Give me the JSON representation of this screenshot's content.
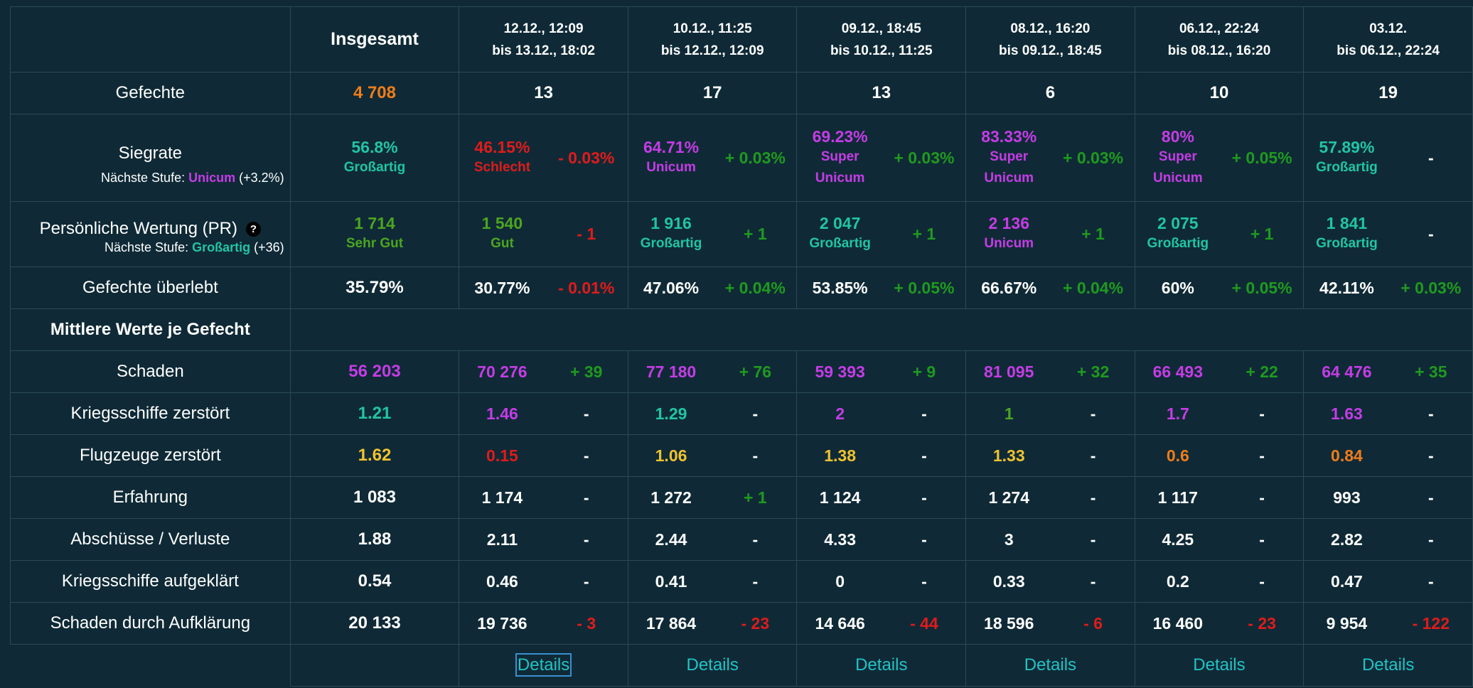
{
  "colors": {
    "background": "#0f2a36",
    "border": "#2a4a57",
    "orange": "#f07d1a",
    "red": "#e01b1b",
    "purple": "#c53ce6",
    "teal": "#21c4a6",
    "green": "#4ca520",
    "positive_change": "#1f9a1f",
    "yellow": "#f0c230",
    "link": "#22c3c6"
  },
  "header": {
    "total_label": "Insgesamt",
    "periods": [
      {
        "line1": "12.12., 12:09",
        "line2": "bis 13.12., 18:02"
      },
      {
        "line1": "10.12., 11:25",
        "line2": "bis 12.12., 12:09"
      },
      {
        "line1": "09.12., 18:45",
        "line2": "bis 10.12., 11:25"
      },
      {
        "line1": "08.12., 16:20",
        "line2": "bis 09.12., 18:45"
      },
      {
        "line1": "06.12., 22:24",
        "line2": "bis 08.12., 16:20"
      },
      {
        "line1": "03.12.",
        "line2": "bis 06.12., 22:24"
      }
    ]
  },
  "battles": {
    "label": "Gefechte",
    "total": "4 708",
    "periods": [
      "13",
      "17",
      "13",
      "6",
      "10",
      "19"
    ]
  },
  "winrate": {
    "label": "Siegrate",
    "next_prefix": "Nächste Stufe:",
    "next_tier": "Unicum",
    "next_delta": "(+3.2%)",
    "total": {
      "value": "56.8%",
      "rating": "Großartig"
    },
    "periods": [
      {
        "value": "46.15%",
        "rating1": "Schlecht",
        "rating2": "",
        "change": "- 0.03%"
      },
      {
        "value": "64.71%",
        "rating1": "Unicum",
        "rating2": "",
        "change": "+ 0.03%"
      },
      {
        "value": "69.23%",
        "rating1": "Super",
        "rating2": "Unicum",
        "change": "+ 0.03%"
      },
      {
        "value": "83.33%",
        "rating1": "Super",
        "rating2": "Unicum",
        "change": "+ 0.03%"
      },
      {
        "value": "80%",
        "rating1": "Super",
        "rating2": "Unicum",
        "change": "+ 0.05%"
      },
      {
        "value": "57.89%",
        "rating1": "Großartig",
        "rating2": "",
        "change": "-"
      }
    ]
  },
  "pr": {
    "label": "Persönliche Wertung (PR)",
    "help_glyph": "?",
    "next_prefix": "Nächste Stufe:",
    "next_tier": "Großartig",
    "next_delta": "(+36)",
    "total": {
      "value": "1 714",
      "rating": "Sehr Gut"
    },
    "periods": [
      {
        "value": "1 540",
        "rating": "Gut",
        "change": "- 1"
      },
      {
        "value": "1 916",
        "rating": "Großartig",
        "change": "+ 1"
      },
      {
        "value": "2 047",
        "rating": "Großartig",
        "change": "+ 1"
      },
      {
        "value": "2 136",
        "rating": "Unicum",
        "change": "+ 1"
      },
      {
        "value": "2 075",
        "rating": "Großartig",
        "change": "+ 1"
      },
      {
        "value": "1 841",
        "rating": "Großartig",
        "change": "-"
      }
    ]
  },
  "survived": {
    "label": "Gefechte überlebt",
    "total": "35.79%",
    "periods": [
      {
        "value": "30.77%",
        "change": "- 0.01%"
      },
      {
        "value": "47.06%",
        "change": "+ 0.04%"
      },
      {
        "value": "53.85%",
        "change": "+ 0.05%"
      },
      {
        "value": "66.67%",
        "change": "+ 0.04%"
      },
      {
        "value": "60%",
        "change": "+ 0.05%"
      },
      {
        "value": "42.11%",
        "change": "+ 0.03%"
      }
    ]
  },
  "section_title": "Mittlere Werte je Gefecht",
  "damage": {
    "label": "Schaden",
    "total": "56 203",
    "periods": [
      {
        "value": "70 276",
        "change": "+ 39"
      },
      {
        "value": "77 180",
        "change": "+ 76"
      },
      {
        "value": "59 393",
        "change": "+ 9"
      },
      {
        "value": "81 095",
        "change": "+ 32"
      },
      {
        "value": "66 493",
        "change": "+ 22"
      },
      {
        "value": "64 476",
        "change": "+ 35"
      }
    ]
  },
  "ships_destroyed": {
    "label": "Kriegsschiffe zerstört",
    "total": "1.21",
    "periods": [
      {
        "value": "1.46",
        "change": "-"
      },
      {
        "value": "1.29",
        "change": "-"
      },
      {
        "value": "2",
        "change": "-"
      },
      {
        "value": "1",
        "change": "-"
      },
      {
        "value": "1.7",
        "change": "-"
      },
      {
        "value": "1.63",
        "change": "-"
      }
    ]
  },
  "planes_destroyed": {
    "label": "Flugzeuge zerstört",
    "total": "1.62",
    "periods": [
      {
        "value": "0.15",
        "change": "-"
      },
      {
        "value": "1.06",
        "change": "-"
      },
      {
        "value": "1.38",
        "change": "-"
      },
      {
        "value": "1.33",
        "change": "-"
      },
      {
        "value": "0.6",
        "change": "-"
      },
      {
        "value": "0.84",
        "change": "-"
      }
    ]
  },
  "experience": {
    "label": "Erfahrung",
    "total": "1 083",
    "periods": [
      {
        "value": "1 174",
        "change": "-"
      },
      {
        "value": "1 272",
        "change": "+ 1"
      },
      {
        "value": "1 124",
        "change": "-"
      },
      {
        "value": "1 274",
        "change": "-"
      },
      {
        "value": "1 117",
        "change": "-"
      },
      {
        "value": "993",
        "change": "-"
      }
    ]
  },
  "kd": {
    "label": "Abschüsse / Verluste",
    "total": "1.88",
    "periods": [
      {
        "value": "2.11",
        "change": "-"
      },
      {
        "value": "2.44",
        "change": "-"
      },
      {
        "value": "4.33",
        "change": "-"
      },
      {
        "value": "3",
        "change": "-"
      },
      {
        "value": "4.25",
        "change": "-"
      },
      {
        "value": "2.82",
        "change": "-"
      }
    ]
  },
  "spotted": {
    "label": "Kriegsschiffe aufgeklärt",
    "total": "0.54",
    "periods": [
      {
        "value": "0.46",
        "change": "-"
      },
      {
        "value": "0.41",
        "change": "-"
      },
      {
        "value": "0",
        "change": "-"
      },
      {
        "value": "0.33",
        "change": "-"
      },
      {
        "value": "0.2",
        "change": "-"
      },
      {
        "value": "0.47",
        "change": "-"
      }
    ]
  },
  "spotting_damage": {
    "label": "Schaden durch Aufklärung",
    "total": "20 133",
    "periods": [
      {
        "value": "19 736",
        "change": "- 3"
      },
      {
        "value": "17 864",
        "change": "- 23"
      },
      {
        "value": "14 646",
        "change": "- 44"
      },
      {
        "value": "18 596",
        "change": "- 6"
      },
      {
        "value": "16 460",
        "change": "- 23"
      },
      {
        "value": "9 954",
        "change": "- 122"
      }
    ]
  },
  "details": {
    "label": "Details"
  }
}
